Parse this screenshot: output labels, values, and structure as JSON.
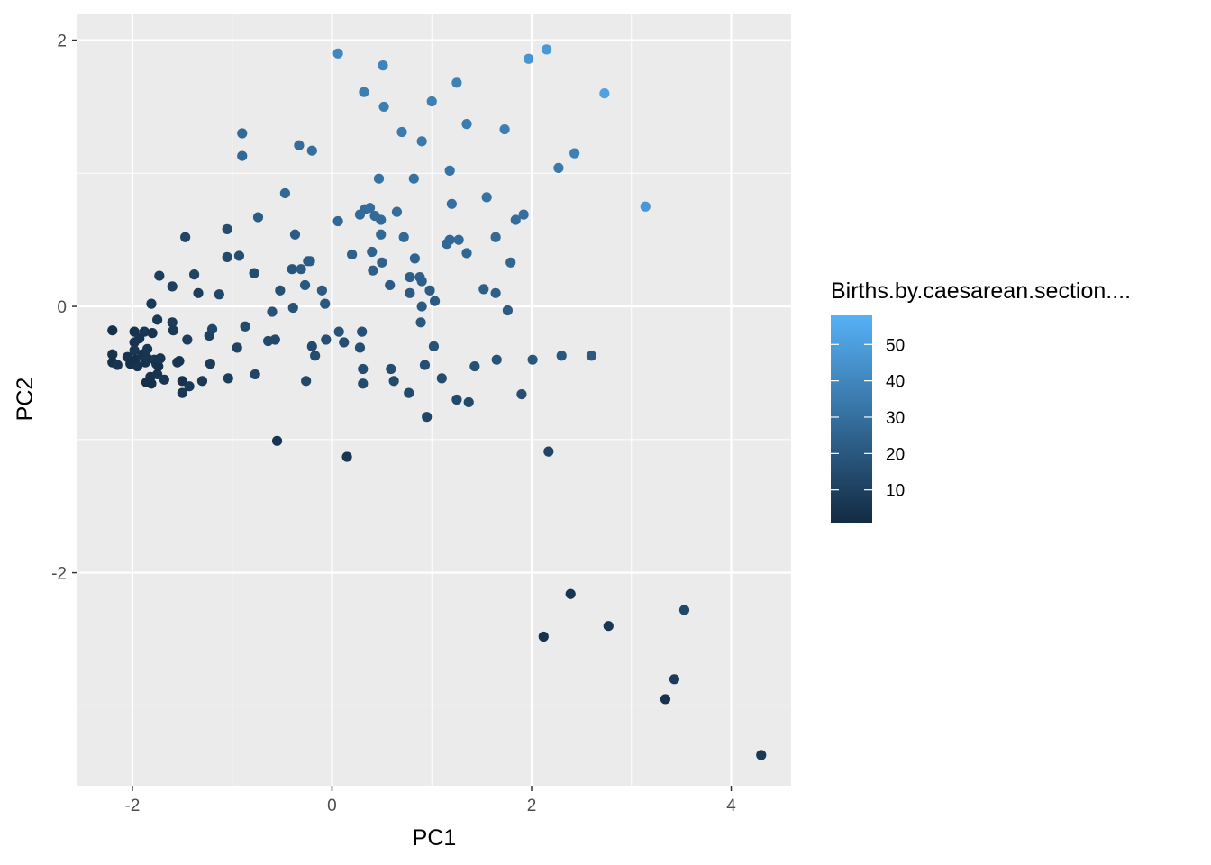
{
  "chart_data": {
    "type": "scatter",
    "xlabel": "PC1",
    "ylabel": "PC2",
    "xlim": [
      -2.55,
      4.6
    ],
    "ylim": [
      -3.6,
      2.2
    ],
    "x_ticks": [
      -2,
      0,
      2,
      4
    ],
    "y_ticks": [
      -2,
      0,
      2
    ],
    "x_tick_labels": [
      "-2",
      "0",
      "2",
      "4"
    ],
    "y_tick_labels": [
      "-2",
      "0",
      "2"
    ],
    "grid": true,
    "panel_background": "#ebebeb",
    "grid_color": "#ffffff",
    "color_low": "#132b43",
    "color_high": "#56b1f7",
    "legend": {
      "title": "Births.by.caesarean.section....",
      "position": "right",
      "min": 1,
      "max": 58,
      "breaks": [
        10,
        20,
        30,
        40,
        50
      ],
      "break_labels": [
        "10",
        "20",
        "30",
        "40",
        "50"
      ]
    },
    "points": [
      {
        "x": -2.2,
        "y": -0.18,
        "c": 3
      },
      {
        "x": -2.2,
        "y": -0.36,
        "c": 4
      },
      {
        "x": -2.2,
        "y": -0.42,
        "c": 3
      },
      {
        "x": -2.15,
        "y": -0.44,
        "c": 5
      },
      {
        "x": -2.05,
        "y": -0.38,
        "c": 4
      },
      {
        "x": -2.02,
        "y": -0.43,
        "c": 3
      },
      {
        "x": -1.98,
        "y": -0.19,
        "c": 4
      },
      {
        "x": -1.98,
        "y": -0.27,
        "c": 5
      },
      {
        "x": -1.98,
        "y": -0.33,
        "c": 6
      },
      {
        "x": -1.97,
        "y": -0.4,
        "c": 3
      },
      {
        "x": -1.95,
        "y": -0.45,
        "c": 4
      },
      {
        "x": -1.93,
        "y": -0.24,
        "c": 5
      },
      {
        "x": -1.9,
        "y": -0.36,
        "c": 4
      },
      {
        "x": -1.88,
        "y": -0.19,
        "c": 6
      },
      {
        "x": -1.87,
        "y": -0.42,
        "c": 4
      },
      {
        "x": -1.86,
        "y": -0.57,
        "c": 3
      },
      {
        "x": -1.85,
        "y": -0.32,
        "c": 6
      },
      {
        "x": -1.85,
        "y": -0.39,
        "c": 5
      },
      {
        "x": -1.82,
        "y": -0.53,
        "c": 4
      },
      {
        "x": -1.81,
        "y": -0.58,
        "c": 3
      },
      {
        "x": -1.81,
        "y": 0.02,
        "c": 7
      },
      {
        "x": -1.8,
        "y": -0.2,
        "c": 5
      },
      {
        "x": -1.78,
        "y": -0.4,
        "c": 6
      },
      {
        "x": -1.76,
        "y": -0.43,
        "c": 4
      },
      {
        "x": -1.75,
        "y": -0.51,
        "c": 5
      },
      {
        "x": -1.75,
        "y": -0.1,
        "c": 7
      },
      {
        "x": -1.74,
        "y": -0.45,
        "c": 3
      },
      {
        "x": -1.73,
        "y": 0.23,
        "c": 9
      },
      {
        "x": -1.72,
        "y": -0.39,
        "c": 5
      },
      {
        "x": -1.68,
        "y": -0.55,
        "c": 6
      },
      {
        "x": -1.6,
        "y": 0.15,
        "c": 10
      },
      {
        "x": -1.6,
        "y": -0.12,
        "c": 8
      },
      {
        "x": -1.59,
        "y": -0.18,
        "c": 7
      },
      {
        "x": -1.55,
        "y": -0.42,
        "c": 6
      },
      {
        "x": -1.53,
        "y": -0.41,
        "c": 5
      },
      {
        "x": -1.5,
        "y": -0.56,
        "c": 4
      },
      {
        "x": -1.5,
        "y": -0.65,
        "c": 6
      },
      {
        "x": -1.47,
        "y": 0.52,
        "c": 12
      },
      {
        "x": -1.45,
        "y": -0.25,
        "c": 9
      },
      {
        "x": -1.43,
        "y": -0.6,
        "c": 7
      },
      {
        "x": -1.38,
        "y": 0.24,
        "c": 11
      },
      {
        "x": -1.34,
        "y": 0.1,
        "c": 9
      },
      {
        "x": -1.3,
        "y": -0.56,
        "c": 7
      },
      {
        "x": -1.23,
        "y": -0.22,
        "c": 10
      },
      {
        "x": -1.22,
        "y": -0.43,
        "c": 8
      },
      {
        "x": -1.2,
        "y": -0.17,
        "c": 12
      },
      {
        "x": -1.13,
        "y": 0.09,
        "c": 13
      },
      {
        "x": -1.05,
        "y": 0.58,
        "c": 15
      },
      {
        "x": -1.05,
        "y": 0.37,
        "c": 14
      },
      {
        "x": -1.04,
        "y": -0.54,
        "c": 9
      },
      {
        "x": -0.93,
        "y": 0.38,
        "c": 16
      },
      {
        "x": -0.95,
        "y": -0.31,
        "c": 11
      },
      {
        "x": -0.9,
        "y": 1.3,
        "c": 28
      },
      {
        "x": -0.9,
        "y": 1.13,
        "c": 27
      },
      {
        "x": -0.87,
        "y": -0.15,
        "c": 14
      },
      {
        "x": -0.78,
        "y": 0.25,
        "c": 15
      },
      {
        "x": -0.77,
        "y": -0.51,
        "c": 12
      },
      {
        "x": -0.74,
        "y": 0.67,
        "c": 22
      },
      {
        "x": -0.64,
        "y": -0.26,
        "c": 14
      },
      {
        "x": -0.6,
        "y": -0.04,
        "c": 18
      },
      {
        "x": -0.57,
        "y": -0.25,
        "c": 13
      },
      {
        "x": -0.55,
        "y": -1.01,
        "c": 5
      },
      {
        "x": -0.52,
        "y": 0.12,
        "c": 17
      },
      {
        "x": -0.47,
        "y": 0.85,
        "c": 27
      },
      {
        "x": -0.4,
        "y": 0.28,
        "c": 19
      },
      {
        "x": -0.37,
        "y": 0.54,
        "c": 22
      },
      {
        "x": -0.39,
        "y": -0.01,
        "c": 18
      },
      {
        "x": -0.33,
        "y": 1.21,
        "c": 29
      },
      {
        "x": -0.31,
        "y": 0.28,
        "c": 21
      },
      {
        "x": -0.27,
        "y": 0.16,
        "c": 20
      },
      {
        "x": -0.26,
        "y": -0.56,
        "c": 13
      },
      {
        "x": -0.24,
        "y": 0.34,
        "c": 21
      },
      {
        "x": -0.22,
        "y": 0.34,
        "c": 22
      },
      {
        "x": -0.2,
        "y": 1.17,
        "c": 30
      },
      {
        "x": -0.2,
        "y": -0.3,
        "c": 14
      },
      {
        "x": -0.17,
        "y": -0.37,
        "c": 15
      },
      {
        "x": -0.1,
        "y": 0.12,
        "c": 21
      },
      {
        "x": -0.07,
        "y": 0.02,
        "c": 20
      },
      {
        "x": -0.06,
        "y": -0.25,
        "c": 16
      },
      {
        "x": 0.06,
        "y": 1.9,
        "c": 40
      },
      {
        "x": 0.06,
        "y": 0.64,
        "c": 27
      },
      {
        "x": 0.07,
        "y": -0.19,
        "c": 18
      },
      {
        "x": 0.12,
        "y": -0.27,
        "c": 16
      },
      {
        "x": 0.15,
        "y": -1.13,
        "c": 6
      },
      {
        "x": 0.2,
        "y": 0.39,
        "c": 24
      },
      {
        "x": 0.28,
        "y": 0.69,
        "c": 28
      },
      {
        "x": 0.28,
        "y": -0.31,
        "c": 16
      },
      {
        "x": 0.3,
        "y": -0.19,
        "c": 17
      },
      {
        "x": 0.31,
        "y": -0.47,
        "c": 15
      },
      {
        "x": 0.31,
        "y": -0.58,
        "c": 14
      },
      {
        "x": 0.32,
        "y": 1.61,
        "c": 36
      },
      {
        "x": 0.33,
        "y": 0.73,
        "c": 28
      },
      {
        "x": 0.38,
        "y": 0.74,
        "c": 29
      },
      {
        "x": 0.4,
        "y": 0.41,
        "c": 25
      },
      {
        "x": 0.41,
        "y": 0.27,
        "c": 23
      },
      {
        "x": 0.43,
        "y": 0.68,
        "c": 28
      },
      {
        "x": 0.47,
        "y": 0.96,
        "c": 31
      },
      {
        "x": 0.49,
        "y": 0.65,
        "c": 28
      },
      {
        "x": 0.49,
        "y": 0.54,
        "c": 27
      },
      {
        "x": 0.5,
        "y": 0.33,
        "c": 24
      },
      {
        "x": 0.51,
        "y": 1.81,
        "c": 39
      },
      {
        "x": 0.52,
        "y": 1.5,
        "c": 36
      },
      {
        "x": 0.58,
        "y": 0.16,
        "c": 22
      },
      {
        "x": 0.59,
        "y": -0.47,
        "c": 15
      },
      {
        "x": 0.62,
        "y": -0.56,
        "c": 14
      },
      {
        "x": 0.65,
        "y": 0.71,
        "c": 29
      },
      {
        "x": 0.7,
        "y": 1.31,
        "c": 35
      },
      {
        "x": 0.72,
        "y": 0.52,
        "c": 27
      },
      {
        "x": 0.78,
        "y": 0.22,
        "c": 23
      },
      {
        "x": 0.78,
        "y": 0.1,
        "c": 21
      },
      {
        "x": 0.77,
        "y": -0.65,
        "c": 14
      },
      {
        "x": 0.82,
        "y": 0.96,
        "c": 31
      },
      {
        "x": 0.83,
        "y": 0.36,
        "c": 25
      },
      {
        "x": 0.88,
        "y": 0.22,
        "c": 24
      },
      {
        "x": 0.9,
        "y": 0.19,
        "c": 23
      },
      {
        "x": 0.9,
        "y": 1.24,
        "c": 34
      },
      {
        "x": 0.9,
        "y": 0.0,
        "c": 21
      },
      {
        "x": 0.89,
        "y": -0.12,
        "c": 20
      },
      {
        "x": 0.93,
        "y": -0.44,
        "c": 16
      },
      {
        "x": 0.95,
        "y": -0.83,
        "c": 12
      },
      {
        "x": 1.0,
        "y": 1.54,
        "c": 37
      },
      {
        "x": 0.98,
        "y": 0.12,
        "c": 22
      },
      {
        "x": 1.03,
        "y": 0.04,
        "c": 21
      },
      {
        "x": 1.02,
        "y": -0.3,
        "c": 18
      },
      {
        "x": 1.1,
        "y": -0.54,
        "c": 15
      },
      {
        "x": 1.15,
        "y": 0.47,
        "c": 27
      },
      {
        "x": 1.18,
        "y": 1.02,
        "c": 32
      },
      {
        "x": 1.18,
        "y": 0.5,
        "c": 27
      },
      {
        "x": 1.2,
        "y": 0.77,
        "c": 30
      },
      {
        "x": 1.25,
        "y": 1.68,
        "c": 38
      },
      {
        "x": 1.25,
        "y": -0.7,
        "c": 14
      },
      {
        "x": 1.27,
        "y": 0.5,
        "c": 28
      },
      {
        "x": 1.35,
        "y": 0.4,
        "c": 26
      },
      {
        "x": 1.35,
        "y": 1.37,
        "c": 35
      },
      {
        "x": 1.37,
        "y": -0.72,
        "c": 14
      },
      {
        "x": 1.43,
        "y": -0.45,
        "c": 17
      },
      {
        "x": 1.52,
        "y": 0.13,
        "c": 23
      },
      {
        "x": 1.55,
        "y": 0.82,
        "c": 31
      },
      {
        "x": 1.64,
        "y": 0.52,
        "c": 28
      },
      {
        "x": 1.64,
        "y": 0.1,
        "c": 23
      },
      {
        "x": 1.65,
        "y": -0.4,
        "c": 18
      },
      {
        "x": 1.73,
        "y": 1.33,
        "c": 36
      },
      {
        "x": 1.76,
        "y": -0.03,
        "c": 22
      },
      {
        "x": 1.79,
        "y": 0.33,
        "c": 26
      },
      {
        "x": 1.84,
        "y": 0.65,
        "c": 29
      },
      {
        "x": 1.9,
        "y": -0.66,
        "c": 16
      },
      {
        "x": 1.92,
        "y": 0.69,
        "c": 30
      },
      {
        "x": 1.97,
        "y": 1.86,
        "c": 46
      },
      {
        "x": 2.01,
        "y": -0.4,
        "c": 20
      },
      {
        "x": 2.15,
        "y": 1.93,
        "c": 48
      },
      {
        "x": 2.17,
        "y": -1.09,
        "c": 12
      },
      {
        "x": 2.12,
        "y": -2.48,
        "c": 4
      },
      {
        "x": 2.27,
        "y": 1.04,
        "c": 34
      },
      {
        "x": 2.3,
        "y": -0.37,
        "c": 20
      },
      {
        "x": 2.39,
        "y": -2.16,
        "c": 5
      },
      {
        "x": 2.43,
        "y": 1.15,
        "c": 37
      },
      {
        "x": 2.6,
        "y": -0.37,
        "c": 21
      },
      {
        "x": 2.73,
        "y": 1.6,
        "c": 52
      },
      {
        "x": 2.77,
        "y": -2.4,
        "c": 6
      },
      {
        "x": 3.14,
        "y": 0.75,
        "c": 47
      },
      {
        "x": 3.34,
        "y": -2.95,
        "c": 4
      },
      {
        "x": 3.43,
        "y": -2.8,
        "c": 8
      },
      {
        "x": 3.53,
        "y": -2.28,
        "c": 13
      },
      {
        "x": 4.3,
        "y": -3.37,
        "c": 7
      }
    ]
  }
}
